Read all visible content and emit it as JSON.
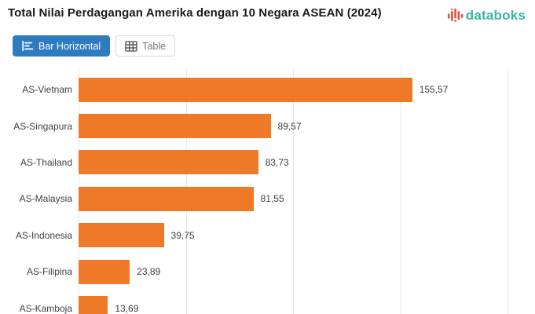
{
  "header": {
    "title": "Total Nilai Perdagangan Amerika dengan 10 Negara ASEAN (2024)",
    "brand": {
      "name": "databoks",
      "icon": "databoks-pulse-icon",
      "text_color": "#3ab5a3",
      "icon_color": "#e2513c"
    }
  },
  "toolbar": {
    "bar_horizontal_label": "Bar Horizontal",
    "table_label": "Table",
    "active_button": "Bar Horizontal",
    "active_color": "#2e7cc0"
  },
  "chart_data": {
    "type": "bar",
    "orientation": "horizontal",
    "title": "Total Nilai Perdagangan Amerika dengan 10 Negara ASEAN (2024)",
    "categories": [
      "AS-Vietnam",
      "AS-Singapura",
      "AS-Thailand",
      "AS-Malaysia",
      "AS-Indonesia",
      "AS-Filipina",
      "AS-Kamboja"
    ],
    "values": [
      155.57,
      89.57,
      83.73,
      81.55,
      39.75,
      23.89,
      13.69
    ],
    "value_labels": [
      "155,57",
      "89,57",
      "83,73",
      "81,55",
      "39,75",
      "23,89",
      "13,69"
    ],
    "bar_color": "#ee7a28",
    "xlabel": "",
    "ylabel": "",
    "xlim": [
      0,
      212
    ],
    "xticks": [
      0,
      50,
      100,
      150,
      200
    ],
    "grid": "vertical-gridlines",
    "legend": "none",
    "note_visible_rows": "7 of 10 rows visible; last row clipped by viewport"
  }
}
